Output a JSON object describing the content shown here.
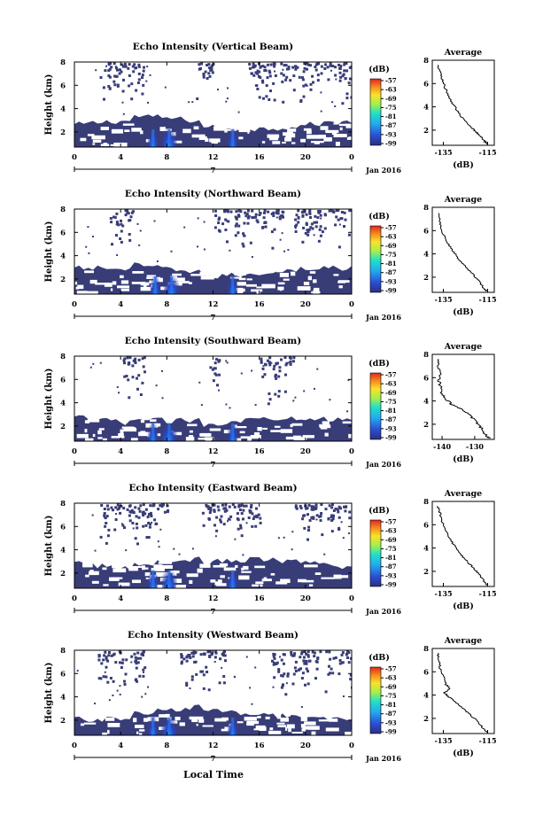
{
  "figure": {
    "xlabel": "Local Time",
    "date_label": "Jan 2016",
    "day_label": "7",
    "colorbar_unit": "(dB)",
    "avg_title": "Average",
    "avg_xlabel": "(dB)"
  },
  "chart_data": [
    {
      "type": "heatmap",
      "title": "Echo Intensity (Vertical Beam)",
      "ylabel": "Height (km)",
      "x_ticks": [
        "0",
        "4",
        "8",
        "12",
        "16",
        "20",
        "0"
      ],
      "y_ticks": [
        "2",
        "4",
        "6",
        "8"
      ],
      "xlim": [
        0,
        24
      ],
      "ylim": [
        0.7,
        8.0
      ],
      "colorbar": {
        "ticks": [
          "-57",
          "-63",
          "-69",
          "-75",
          "-81",
          "-87",
          "-93",
          "-99"
        ],
        "range": [
          -99,
          -57
        ]
      },
      "data_profile": {
        "base_top_km": 2.6,
        "echo_core_hours": [
          6.8,
          8.2,
          13.7
        ],
        "sparse_upper_hours": [
          [
            2,
            6
          ],
          [
            10.5,
            12
          ],
          [
            15,
            24
          ]
        ]
      },
      "average_profile": {
        "x_ticks": [
          "-135",
          "-115"
        ],
        "xlim": [
          -140,
          -112
        ],
        "y_ticks": [
          "2",
          "4",
          "6",
          "8"
        ],
        "ylim": [
          0.7,
          8
        ],
        "points": [
          [
            -137.5,
            7.6
          ],
          [
            -136.5,
            7.0
          ],
          [
            -135.5,
            6.4
          ],
          [
            -134.5,
            5.8
          ],
          [
            -133,
            5.1
          ],
          [
            -131.5,
            4.5
          ],
          [
            -129.5,
            3.9
          ],
          [
            -127.5,
            3.3
          ],
          [
            -125,
            2.8
          ],
          [
            -122.5,
            2.3
          ],
          [
            -120.5,
            1.9
          ],
          [
            -118.5,
            1.5
          ],
          [
            -116.5,
            1.1
          ],
          [
            -115.5,
            0.8
          ]
        ]
      }
    },
    {
      "type": "heatmap",
      "title": "Echo Intensity (Northward Beam)",
      "ylabel": "Height (km)",
      "x_ticks": [
        "0",
        "4",
        "8",
        "12",
        "16",
        "20",
        "0"
      ],
      "y_ticks": [
        "2",
        "4",
        "6",
        "8"
      ],
      "xlim": [
        0,
        24
      ],
      "ylim": [
        0.7,
        8.0
      ],
      "colorbar": {
        "ticks": [
          "-57",
          "-63",
          "-69",
          "-75",
          "-81",
          "-87",
          "-93",
          "-99"
        ],
        "range": [
          -99,
          -57
        ]
      },
      "data_profile": {
        "base_top_km": 2.6,
        "echo_core_hours": [
          7.0,
          8.4,
          13.7
        ],
        "sparse_upper_hours": [
          [
            3,
            5
          ],
          [
            12,
            18
          ],
          [
            19,
            24
          ]
        ]
      },
      "average_profile": {
        "x_ticks": [
          "-135",
          "-115"
        ],
        "xlim": [
          -140,
          -112
        ],
        "y_ticks": [
          "2",
          "4",
          "6",
          "8"
        ],
        "ylim": [
          0.7,
          8
        ],
        "points": [
          [
            -137,
            7.5
          ],
          [
            -136.5,
            6.9
          ],
          [
            -136,
            6.2
          ],
          [
            -134.5,
            5.5
          ],
          [
            -133,
            4.9
          ],
          [
            -131,
            4.3
          ],
          [
            -129,
            3.8
          ],
          [
            -127,
            3.3
          ],
          [
            -124.5,
            2.8
          ],
          [
            -122,
            2.3
          ],
          [
            -120,
            1.9
          ],
          [
            -118,
            1.4
          ],
          [
            -116.5,
            1.0
          ],
          [
            -115.5,
            0.8
          ]
        ]
      }
    },
    {
      "type": "heatmap",
      "title": "Echo Intensity (Southward Beam)",
      "ylabel": "Height (km)",
      "x_ticks": [
        "0",
        "4",
        "8",
        "12",
        "16",
        "20",
        "0"
      ],
      "y_ticks": [
        "2",
        "4",
        "6",
        "8"
      ],
      "xlim": [
        0,
        24
      ],
      "ylim": [
        0.7,
        8.0
      ],
      "colorbar": {
        "ticks": [
          "-57",
          "-63",
          "-69",
          "-75",
          "-81",
          "-87",
          "-93",
          "-99"
        ],
        "range": [
          -99,
          -57
        ]
      },
      "data_profile": {
        "base_top_km": 2.4,
        "echo_core_hours": [
          6.8,
          8.2,
          13.7
        ],
        "sparse_upper_hours": [
          [
            4,
            6
          ],
          [
            11.5,
            12.5
          ],
          [
            16,
            19
          ]
        ]
      },
      "average_profile": {
        "x_ticks": [
          "-140",
          "-130"
        ],
        "xlim": [
          -143,
          -124
        ],
        "y_ticks": [
          "2",
          "4",
          "6",
          "8"
        ],
        "ylim": [
          0.7,
          8
        ],
        "points": [
          [
            -141,
            7.6
          ],
          [
            -141.5,
            7.0
          ],
          [
            -140.5,
            6.4
          ],
          [
            -141,
            5.8
          ],
          [
            -140.5,
            5.2
          ],
          [
            -140,
            4.6
          ],
          [
            -138.5,
            4.1
          ],
          [
            -137,
            3.7
          ],
          [
            -134,
            3.3
          ],
          [
            -132,
            2.9
          ],
          [
            -130.5,
            2.5
          ],
          [
            -129,
            2.0
          ],
          [
            -127.5,
            1.5
          ],
          [
            -126.5,
            1.0
          ],
          [
            -125.5,
            0.8
          ]
        ]
      }
    },
    {
      "type": "heatmap",
      "title": "Echo Intensity (Eastward Beam)",
      "ylabel": "Height (km)",
      "x_ticks": [
        "0",
        "4",
        "8",
        "12",
        "16",
        "20",
        "0"
      ],
      "y_ticks": [
        "2",
        "4",
        "6",
        "8"
      ],
      "xlim": [
        0,
        24
      ],
      "ylim": [
        0.7,
        8.0
      ],
      "colorbar": {
        "ticks": [
          "-57",
          "-63",
          "-69",
          "-75",
          "-81",
          "-87",
          "-93",
          "-99"
        ],
        "range": [
          -99,
          -57
        ]
      },
      "data_profile": {
        "base_top_km": 2.8,
        "echo_core_hours": [
          6.8,
          8.2,
          13.7
        ],
        "sparse_upper_hours": [
          [
            2,
            8
          ],
          [
            11,
            16
          ],
          [
            19,
            24
          ]
        ]
      },
      "average_profile": {
        "x_ticks": [
          "-135",
          "-115"
        ],
        "xlim": [
          -140,
          -112
        ],
        "y_ticks": [
          "2",
          "4",
          "6",
          "8"
        ],
        "ylim": [
          0.7,
          8
        ],
        "points": [
          [
            -137.5,
            7.6
          ],
          [
            -136.5,
            7.0
          ],
          [
            -136,
            6.4
          ],
          [
            -134.5,
            5.8
          ],
          [
            -133,
            5.1
          ],
          [
            -131,
            4.5
          ],
          [
            -129,
            3.9
          ],
          [
            -127,
            3.4
          ],
          [
            -124.5,
            2.9
          ],
          [
            -122,
            2.4
          ],
          [
            -120,
            2.0
          ],
          [
            -118,
            1.5
          ],
          [
            -116.5,
            1.1
          ],
          [
            -115.5,
            0.8
          ]
        ]
      }
    },
    {
      "type": "heatmap",
      "title": "Echo Intensity (Westward Beam)",
      "ylabel": "Height (km)",
      "x_ticks": [
        "0",
        "4",
        "8",
        "12",
        "16",
        "20",
        "0"
      ],
      "y_ticks": [
        "2",
        "4",
        "6",
        "8"
      ],
      "xlim": [
        0,
        24
      ],
      "ylim": [
        0.7,
        8.0
      ],
      "colorbar": {
        "ticks": [
          "-57",
          "-63",
          "-69",
          "-75",
          "-81",
          "-87",
          "-93",
          "-99"
        ],
        "range": [
          -99,
          -57
        ]
      },
      "data_profile": {
        "base_top_km": 2.4,
        "echo_core_hours": [
          6.8,
          8.2,
          13.7
        ],
        "sparse_upper_hours": [
          [
            2,
            6
          ],
          [
            9,
            13
          ],
          [
            17,
            24
          ]
        ]
      },
      "average_profile": {
        "x_ticks": [
          "-135",
          "-115"
        ],
        "xlim": [
          -140,
          -112
        ],
        "y_ticks": [
          "2",
          "4",
          "6",
          "8"
        ],
        "ylim": [
          0.7,
          8
        ],
        "points": [
          [
            -137.5,
            7.6
          ],
          [
            -137,
            7.0
          ],
          [
            -136.5,
            6.3
          ],
          [
            -135,
            5.6
          ],
          [
            -134,
            4.9
          ],
          [
            -132,
            4.6
          ],
          [
            -134.5,
            4.2
          ],
          [
            -133,
            3.9
          ],
          [
            -130,
            3.5
          ],
          [
            -127,
            3.0
          ],
          [
            -124,
            2.5
          ],
          [
            -121,
            2.0
          ],
          [
            -118.5,
            1.5
          ],
          [
            -116.5,
            1.0
          ],
          [
            -115.5,
            0.8
          ]
        ]
      }
    }
  ]
}
